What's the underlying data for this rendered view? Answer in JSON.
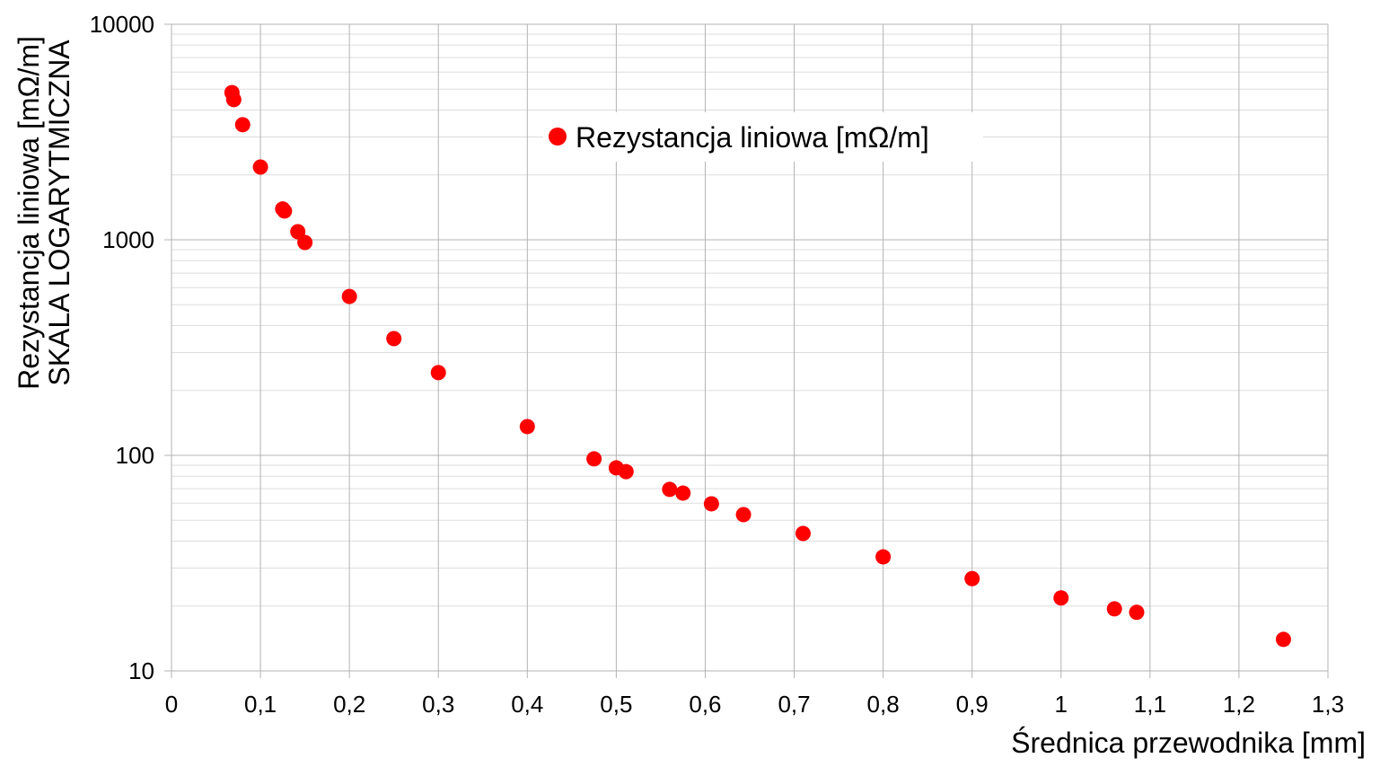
{
  "chart_data": {
    "type": "scatter",
    "title": "",
    "xlabel": "Średnica przewodnika [mm]",
    "ylabel": [
      "Rezystancja liniowa [mΩ/m]",
      "SKALA LOGARYTMICZNA"
    ],
    "xlim": [
      0,
      1.3
    ],
    "ylim": [
      10,
      10000
    ],
    "yscale": "log",
    "grid": true,
    "legend_placement": "top-center",
    "xticks": [
      "0",
      "0,1",
      "0,2",
      "0,3",
      "0,4",
      "0,5",
      "0,6",
      "0,7",
      "0,8",
      "0,9",
      "1",
      "1,1",
      "1,2",
      "1,3"
    ],
    "yticks": [
      "10",
      "100",
      "1000",
      "10000"
    ],
    "series": [
      {
        "name": "Rezystancja liniowa [mΩ/m]",
        "color": "#ff0000",
        "points": [
          [
            0.068,
            4820
          ],
          [
            0.07,
            4470
          ],
          [
            0.08,
            3420
          ],
          [
            0.1,
            2175
          ],
          [
            0.125,
            1390
          ],
          [
            0.127,
            1360
          ],
          [
            0.142,
            1090
          ],
          [
            0.15,
            972
          ],
          [
            0.2,
            546
          ],
          [
            0.25,
            348
          ],
          [
            0.3,
            242
          ],
          [
            0.4,
            136
          ],
          [
            0.475,
            96.3
          ],
          [
            0.5,
            87.5
          ],
          [
            0.511,
            84
          ],
          [
            0.56,
            69.5
          ],
          [
            0.575,
            66.8
          ],
          [
            0.607,
            59.6
          ],
          [
            0.643,
            53.1
          ],
          [
            0.71,
            43.4
          ],
          [
            0.8,
            33.8
          ],
          [
            0.9,
            26.8
          ],
          [
            1.0,
            21.8
          ],
          [
            1.06,
            19.4
          ],
          [
            1.085,
            18.7
          ],
          [
            1.25,
            14.0
          ]
        ]
      }
    ]
  }
}
